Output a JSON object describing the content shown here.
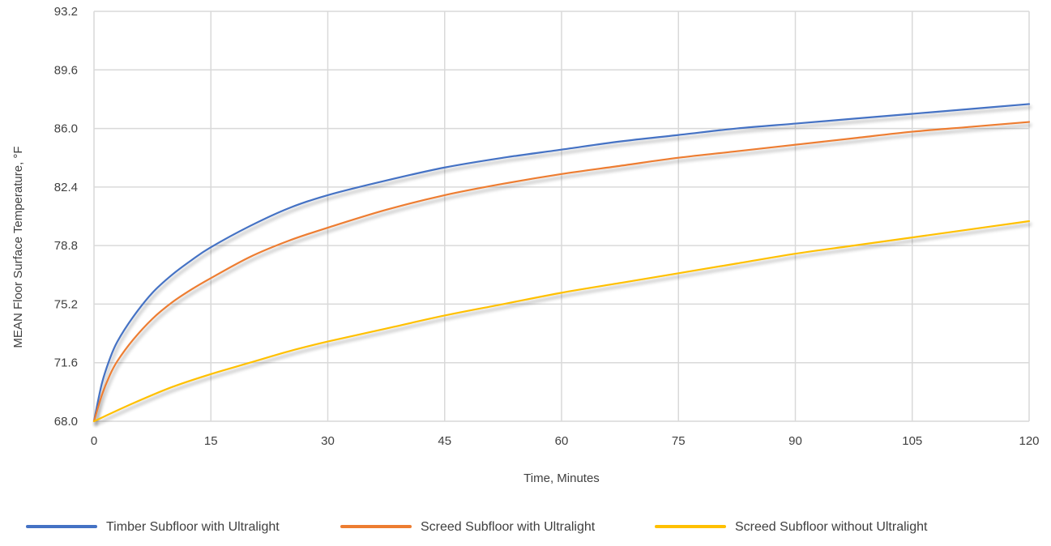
{
  "chart_data": {
    "type": "line",
    "title": "",
    "xlabel": "Time, Minutes",
    "ylabel": "MEAN Floor Surface Temperature, °F",
    "xlim": [
      0,
      120
    ],
    "ylim": [
      68.0,
      93.2
    ],
    "x_ticks": [
      0,
      15,
      30,
      45,
      60,
      75,
      90,
      105,
      120
    ],
    "x_tick_labels": [
      "0",
      "15",
      "30",
      "45",
      "60",
      "75",
      "90",
      "105",
      "120"
    ],
    "y_ticks": [
      68.0,
      71.6,
      75.2,
      78.8,
      82.4,
      86.0,
      89.6,
      93.2
    ],
    "y_tick_labels": [
      "68.0",
      "71.6",
      "75.2",
      "78.8",
      "82.4",
      "86.0",
      "89.6",
      "93.2"
    ],
    "grid": true,
    "legend_position": "bottom",
    "series": [
      {
        "name": "Timber Subfloor with Ultralight",
        "color": "#4472c4",
        "x": [
          0,
          1,
          2,
          3,
          5,
          7.5,
          10,
          12.5,
          15,
          20,
          25,
          30,
          37.5,
          45,
          52.5,
          60,
          67.5,
          75,
          82.5,
          90,
          97.5,
          105,
          112.5,
          120
        ],
        "y": [
          68.0,
          70.3,
          71.8,
          72.9,
          74.4,
          75.9,
          77.0,
          77.9,
          78.7,
          80.0,
          81.1,
          81.9,
          82.8,
          83.6,
          84.2,
          84.7,
          85.2,
          85.6,
          86.0,
          86.3,
          86.6,
          86.9,
          87.2,
          87.5
        ]
      },
      {
        "name": "Screed Subfloor with Ultralight",
        "color": "#ed7d31",
        "x": [
          0,
          1,
          2,
          3,
          5,
          7.5,
          10,
          12.5,
          15,
          20,
          25,
          30,
          37.5,
          45,
          52.5,
          60,
          67.5,
          75,
          82.5,
          90,
          97.5,
          105,
          112.5,
          120
        ],
        "y": [
          68.0,
          69.6,
          70.8,
          71.7,
          73.0,
          74.3,
          75.3,
          76.1,
          76.8,
          78.1,
          79.1,
          79.9,
          81.0,
          81.9,
          82.6,
          83.2,
          83.7,
          84.2,
          84.6,
          85.0,
          85.4,
          85.8,
          86.1,
          86.4
        ]
      },
      {
        "name": "Screed Subfloor without Ultralight",
        "color": "#ffc000",
        "x": [
          0,
          5,
          10,
          15,
          20,
          25,
          30,
          37.5,
          45,
          52.5,
          60,
          67.5,
          75,
          82.5,
          90,
          97.5,
          105,
          112.5,
          120
        ],
        "y": [
          68.0,
          69.1,
          70.1,
          70.9,
          71.6,
          72.3,
          72.9,
          73.7,
          74.5,
          75.2,
          75.9,
          76.5,
          77.1,
          77.7,
          78.3,
          78.8,
          79.3,
          79.8,
          80.3
        ]
      }
    ]
  }
}
